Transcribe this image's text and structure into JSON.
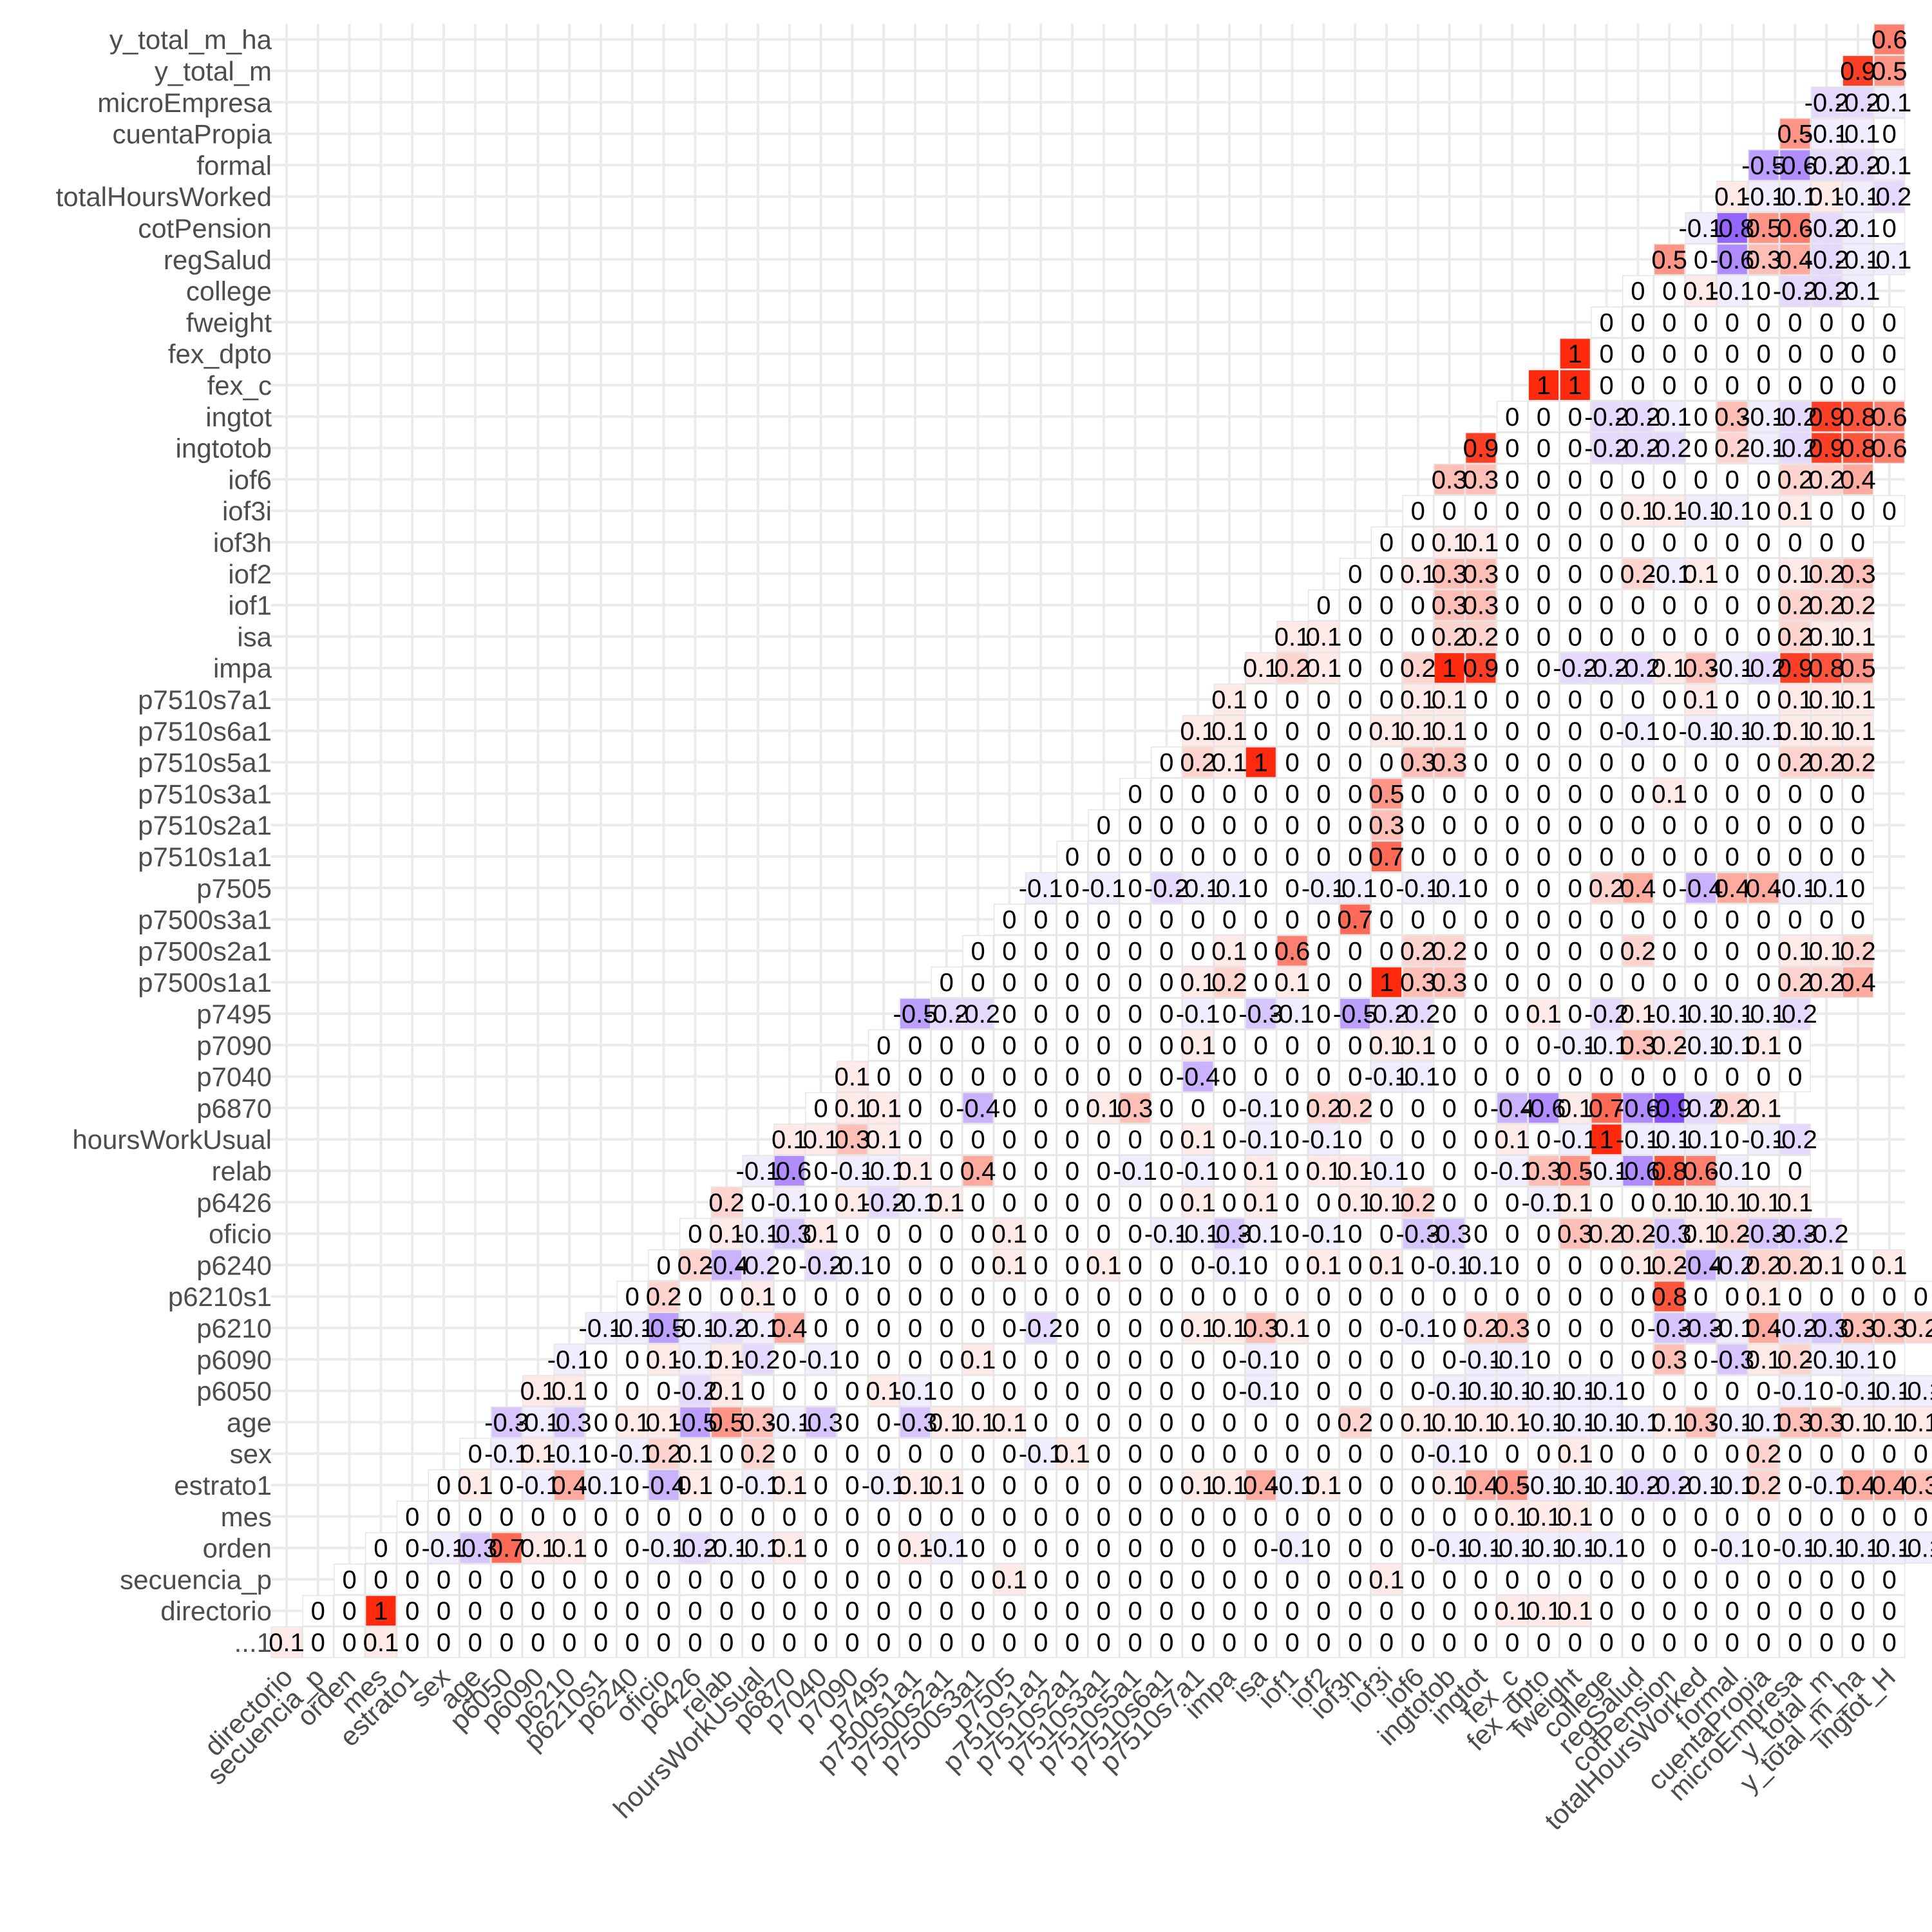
{
  "chart_data": {
    "type": "heatmap",
    "variables": [
      "...1",
      "directorio",
      "secuencia_p",
      "orden",
      "mes",
      "estrato1",
      "sex",
      "age",
      "p6050",
      "p6090",
      "p6210",
      "p6210s1",
      "p6240",
      "oficio",
      "p6426",
      "relab",
      "hoursWorkUsual",
      "p6870",
      "p7040",
      "p7090",
      "p7495",
      "p7500s1a1",
      "p7500s2a1",
      "p7500s3a1",
      "p7505",
      "p7510s1a1",
      "p7510s2a1",
      "p7510s3a1",
      "p7510s5a1",
      "p7510s6a1",
      "p7510s7a1",
      "impa",
      "isa",
      "iof1",
      "iof2",
      "iof3h",
      "iof3i",
      "iof6",
      "ingtotob",
      "ingtot",
      "fex_c",
      "fex_dpto",
      "fweight",
      "college",
      "regSalud",
      "cotPension",
      "totalHoursWorked",
      "formal",
      "cuentaPropia",
      "microEmpresa",
      "y_total_m",
      "y_total_m_ha",
      "ingtot_H"
    ],
    "y_labels": [
      "...1",
      "directorio",
      "secuencia_p",
      "orden",
      "mes",
      "estrato1",
      "sex",
      "age",
      "p6050",
      "p6090",
      "p6210",
      "p6210s1",
      "p6240",
      "oficio",
      "p6426",
      "relab",
      "hoursWorkUsual",
      "p6870",
      "p7040",
      "p7090",
      "p7495",
      "p7500s1a1",
      "p7500s2a1",
      "p7500s3a1",
      "p7505",
      "p7510s1a1",
      "p7510s2a1",
      "p7510s3a1",
      "p7510s5a1",
      "p7510s6a1",
      "p7510s7a1",
      "impa",
      "isa",
      "iof1",
      "iof2",
      "iof3h",
      "iof3i",
      "iof6",
      "ingtotob",
      "ingtot",
      "fex_c",
      "fex_dpto",
      "fweight",
      "college",
      "regSalud",
      "cotPension",
      "totalHoursWorked",
      "formal",
      "cuentaPropia",
      "microEmpresa",
      "y_total_m",
      "y_total_m_ha"
    ],
    "x_labels": [
      "directorio",
      "secuencia_p",
      "orden",
      "mes",
      "estrato1",
      "sex",
      "age",
      "p6050",
      "p6090",
      "p6210",
      "p6210s1",
      "p6240",
      "oficio",
      "p6426",
      "relab",
      "hoursWorkUsual",
      "p6870",
      "p7040",
      "p7090",
      "p7495",
      "p7500s1a1",
      "p7500s2a1",
      "p7500s3a1",
      "p7505",
      "p7510s1a1",
      "p7510s2a1",
      "p7510s3a1",
      "p7510s5a1",
      "p7510s6a1",
      "p7510s7a1",
      "impa",
      "isa",
      "iof1",
      "iof2",
      "iof3h",
      "iof3i",
      "iof6",
      "ingtotob",
      "ingtot",
      "fex_c",
      "fex_dpto",
      "fweight",
      "college",
      "regSalud",
      "cotPension",
      "totalHoursWorked",
      "formal",
      "cuentaPropia",
      "microEmpresa",
      "y_total_m",
      "y_total_m_ha",
      "ingtot_H"
    ],
    "value_range": [
      -1,
      1
    ],
    "color_scale": {
      "low": "#7b3fff",
      "mid": "#ffffff",
      "high": "#ff2a0d"
    },
    "grid": true,
    "legend": "none",
    "triangle": "lower",
    "values": [
      [
        0.1,
        0,
        0,
        0.1,
        0,
        0,
        0,
        0,
        0,
        0,
        0,
        0,
        0,
        0,
        0,
        0,
        0,
        0,
        0,
        0,
        0,
        0,
        0,
        0,
        0,
        0,
        0,
        0,
        0,
        0,
        0,
        0,
        0,
        0,
        0,
        0,
        0,
        0,
        0,
        0,
        0,
        0,
        0,
        0,
        0,
        0,
        0,
        0,
        0,
        0,
        0,
        0
      ],
      [
        0,
        0,
        1,
        0,
        0,
        0,
        0,
        0,
        0,
        0,
        0,
        0,
        0,
        0,
        0,
        0,
        0,
        0,
        0,
        0,
        0,
        0,
        0,
        0,
        0,
        0,
        0,
        0,
        0,
        0,
        0,
        0,
        0,
        0,
        0,
        0,
        0,
        0,
        0.1,
        0.1,
        0.1,
        0,
        0,
        0,
        0,
        0,
        0,
        0,
        0,
        0,
        0
      ],
      [
        0,
        0,
        0,
        0,
        0,
        0,
        0,
        0,
        0,
        0,
        0,
        0,
        0,
        0,
        0,
        0,
        0,
        0,
        0,
        0,
        0,
        0.1,
        0,
        0,
        0,
        0,
        0,
        0,
        0,
        0,
        0,
        0,
        0,
        0.1,
        0,
        0,
        0,
        0,
        0,
        0,
        0,
        0,
        0,
        0,
        0,
        0,
        0,
        0,
        0,
        0
      ],
      [
        0,
        0,
        -0.1,
        -0.3,
        0.7,
        0.1,
        0.1,
        0,
        0,
        -0.1,
        -0.2,
        -0.1,
        -0.1,
        0.1,
        0,
        0,
        0,
        0.1,
        -0.1,
        0,
        0,
        0,
        0,
        0,
        0,
        0,
        0,
        0,
        0,
        -0.1,
        0,
        0,
        0,
        0,
        -0.1,
        -0.1,
        -0.1,
        -0.1,
        -0.1,
        -0.1,
        0,
        0,
        0,
        -0.1,
        0,
        -0.1,
        -0.1,
        -0.1,
        -0.1,
        -0.1,
        -0.1
      ],
      [
        0,
        0,
        0,
        0,
        0,
        0,
        0,
        0,
        0,
        0,
        0,
        0,
        0,
        0,
        0,
        0,
        0,
        0,
        0,
        0,
        0,
        0,
        0,
        0,
        0,
        0,
        0,
        0,
        0,
        0,
        0,
        0,
        0,
        0,
        0,
        0.1,
        0.1,
        0.1,
        0,
        0,
        0,
        0,
        0,
        0,
        0,
        0,
        0,
        0,
        0,
        0
      ],
      [
        0,
        0.1,
        0,
        -0.1,
        0.4,
        -0.1,
        0,
        -0.4,
        0.1,
        0,
        -0.1,
        0.1,
        0,
        0,
        -0.1,
        0.1,
        0.1,
        0,
        0,
        0,
        0,
        0,
        0,
        0,
        0.1,
        0.1,
        0.4,
        -0.1,
        0.1,
        0,
        0,
        0,
        0.1,
        0.4,
        0.5,
        -0.1,
        -0.1,
        -0.1,
        -0.2,
        -0.2,
        -0.1,
        -0.1,
        0.2,
        0,
        -0.1,
        0.4,
        0.4,
        0.3
      ],
      [
        0,
        -0.1,
        0.1,
        -0.1,
        0,
        -0.1,
        0.2,
        0.1,
        0,
        0.2,
        0,
        0,
        0,
        0,
        0,
        0,
        0,
        0,
        -0.1,
        0.1,
        0,
        0,
        0,
        0,
        0,
        0,
        0,
        0,
        0,
        0,
        0,
        -0.1,
        0,
        0,
        0,
        0.1,
        0,
        0,
        0,
        0,
        0,
        0.2,
        0,
        0,
        0,
        0,
        0,
        0
      ],
      [
        -0.3,
        -0.1,
        -0.3,
        0,
        0.1,
        0.1,
        -0.5,
        0.5,
        0.3,
        -0.1,
        -0.3,
        0,
        0,
        -0.3,
        0.1,
        0.1,
        0.1,
        0,
        0,
        0,
        0,
        0,
        0,
        0,
        0,
        0,
        0,
        0.2,
        0,
        0.1,
        0.1,
        0.1,
        0.1,
        -0.1,
        -0.1,
        -0.1,
        -0.1,
        0.1,
        0.3,
        -0.1,
        -0.1,
        0.3,
        0.3,
        0.1,
        0.1,
        0.1
      ],
      [
        0.1,
        0.1,
        0,
        0,
        0,
        -0.2,
        0.1,
        0,
        0,
        0,
        0,
        0.1,
        -0.1,
        0,
        0,
        0,
        0,
        0,
        0,
        0,
        0,
        0,
        0,
        -0.1,
        0,
        0,
        0,
        0,
        0,
        -0.1,
        -0.1,
        -0.1,
        -0.1,
        -0.1,
        -0.1,
        0,
        0,
        0,
        0,
        0,
        -0.1,
        0,
        -0.1,
        -0.1,
        -0.1,
        -0.1
      ],
      [
        -0.1,
        0,
        0,
        0.1,
        -0.1,
        0.1,
        -0.2,
        0,
        -0.1,
        0,
        0,
        0,
        0,
        0.1,
        0,
        0,
        0,
        0,
        0,
        0,
        0,
        0,
        -0.1,
        0,
        0,
        0,
        0,
        0,
        0,
        -0.1,
        -0.1,
        0,
        0,
        0,
        0,
        0.3,
        0,
        -0.3,
        0.1,
        0.2,
        -0.1,
        -0.1,
        0
      ],
      [
        -0.1,
        -0.1,
        -0.5,
        -0.1,
        -0.2,
        -0.1,
        0.4,
        0,
        0,
        0,
        0,
        0,
        0,
        0,
        -0.2,
        0,
        0,
        0,
        0,
        0.1,
        0.1,
        0.3,
        0.1,
        0,
        0,
        0,
        -0.1,
        0,
        0.2,
        0.3,
        0,
        0,
        0,
        0,
        -0.3,
        -0.3,
        -0.1,
        0.4,
        -0.2,
        -0.3,
        0.3,
        0.3,
        0.2
      ],
      [
        0,
        0.2,
        0,
        0,
        0.1,
        0,
        0,
        0,
        0,
        0,
        0,
        0,
        0,
        0,
        0,
        0,
        0,
        0,
        0,
        0,
        0,
        0,
        0,
        0,
        0,
        0,
        0,
        0,
        0,
        0,
        0,
        0,
        0,
        0.8,
        0,
        0,
        0.1,
        0,
        0,
        0,
        0,
        0,
        0
      ],
      [
        0,
        0.2,
        -0.4,
        -0.2,
        0,
        -0.2,
        -0.1,
        0,
        0,
        0,
        0,
        0.1,
        0,
        0,
        0.1,
        0,
        0,
        0,
        -0.1,
        0,
        0,
        0.1,
        0,
        0.1,
        0,
        -0.1,
        -0.1,
        0,
        0,
        0,
        0,
        0.1,
        0.2,
        -0.4,
        -0.2,
        0.2,
        0.2,
        0.1,
        0,
        0.1
      ],
      [
        0,
        0.1,
        -0.1,
        -0.3,
        0.1,
        0,
        0,
        0,
        0,
        0,
        0.1,
        0,
        0,
        0,
        0,
        -0.1,
        -0.1,
        -0.3,
        -0.1,
        0,
        -0.1,
        0,
        0,
        -0.3,
        -0.3,
        0,
        0,
        0,
        0.3,
        0.2,
        0.2,
        -0.3,
        0.1,
        0.2,
        -0.3,
        -0.3,
        -0.2
      ],
      [
        0.2,
        0,
        -0.1,
        0,
        0.1,
        -0.2,
        -0.1,
        0.1,
        0,
        0,
        0,
        0,
        0,
        0,
        0,
        0.1,
        0,
        0.1,
        0,
        0,
        0.1,
        0.1,
        0.2,
        0,
        0,
        0,
        -0.1,
        0.1,
        0,
        0,
        0.1,
        0.1,
        0.1,
        0.1,
        0.1
      ],
      [
        -0.1,
        -0.6,
        0,
        -0.1,
        -0.1,
        0.1,
        0,
        0.4,
        0,
        0,
        0,
        0,
        -0.1,
        0,
        -0.1,
        0,
        0.1,
        0,
        0.1,
        0.1,
        -0.1,
        0,
        0,
        0,
        -0.1,
        0.3,
        0.5,
        -0.1,
        -0.6,
        0.8,
        0.6,
        -0.1,
        0,
        0
      ],
      [
        0.1,
        0.1,
        0.3,
        0.1,
        0,
        0,
        0,
        0,
        0,
        0,
        0,
        0,
        0,
        0.1,
        0,
        -0.1,
        0,
        -0.1,
        0,
        0,
        0,
        0,
        0,
        0.1,
        0,
        -0.1,
        1,
        -0.1,
        -0.1,
        -0.1,
        0,
        -0.1,
        -0.2
      ],
      [
        0,
        0.1,
        0.1,
        0,
        0,
        -0.4,
        0,
        0,
        0,
        0.1,
        0.3,
        0,
        0,
        0,
        -0.1,
        0,
        0.2,
        0.2,
        0,
        0,
        0,
        0,
        -0.4,
        -0.6,
        0.1,
        0.7,
        -0.6,
        -0.9,
        -0.2,
        0.2,
        0.1
      ],
      [
        0.1,
        0,
        0,
        0,
        0,
        0,
        0,
        0,
        0,
        0,
        0,
        -0.4,
        0,
        0,
        0,
        0,
        0,
        -0.1,
        -0.1,
        0,
        0,
        0,
        0,
        0,
        0,
        0,
        0,
        0,
        0,
        0,
        0
      ],
      [
        0,
        0,
        0,
        0,
        0,
        0,
        0,
        0,
        0,
        0,
        0.1,
        0,
        0,
        0,
        0,
        0,
        0.1,
        0.1,
        0,
        0,
        0,
        0,
        -0.1,
        -0.1,
        0.3,
        0.2,
        -0.1,
        -0.1,
        0.1,
        0
      ],
      [
        -0.5,
        -0.2,
        -0.2,
        0,
        0,
        0,
        0,
        0,
        0,
        -0.1,
        0,
        -0.3,
        -0.1,
        0,
        -0.5,
        -0.2,
        -0.2,
        0,
        0,
        0,
        0.1,
        0,
        -0.2,
        0.1,
        -0.1,
        -0.1,
        -0.1,
        -0.1,
        -0.2
      ],
      [
        0,
        0,
        0,
        0,
        0,
        0,
        0,
        0,
        0.1,
        0.2,
        0,
        0.1,
        0,
        0,
        1,
        0.3,
        0.3,
        0,
        0,
        0,
        0,
        0,
        0,
        0,
        0,
        0,
        0,
        0.2,
        0.2,
        0.4
      ],
      [
        0,
        0,
        0,
        0,
        0,
        0,
        0,
        0,
        0.1,
        0,
        0.6,
        0,
        0,
        0,
        0.2,
        0.2,
        0,
        0,
        0,
        0,
        0,
        0.2,
        0,
        0,
        0,
        0,
        0.1,
        0.1,
        0.2
      ],
      [
        0,
        0,
        0,
        0,
        0,
        0,
        0,
        0,
        0,
        0,
        0,
        0.7,
        0,
        0,
        0,
        0,
        0,
        0,
        0,
        0,
        0,
        0,
        0,
        0,
        0,
        0,
        0,
        0
      ],
      [
        -0.1,
        0,
        -0.1,
        0,
        -0.2,
        -0.1,
        -0.1,
        0,
        0,
        -0.1,
        -0.1,
        0,
        -0.1,
        -0.1,
        0,
        0,
        0,
        0,
        0.2,
        0.4,
        0,
        -0.4,
        0.4,
        0.4,
        -0.1,
        -0.1,
        0
      ],
      [
        0,
        0,
        0,
        0,
        0,
        0,
        0,
        0,
        0,
        0,
        0.7,
        0,
        0,
        0,
        0,
        0,
        0,
        0,
        0,
        0,
        0,
        0,
        0,
        0,
        0,
        0
      ],
      [
        0,
        0,
        0,
        0,
        0,
        0,
        0,
        0,
        0,
        0.3,
        0,
        0,
        0,
        0,
        0,
        0,
        0,
        0,
        0,
        0,
        0,
        0,
        0,
        0,
        0
      ],
      [
        0,
        0,
        0,
        0,
        0,
        0,
        0,
        0,
        0.5,
        0,
        0,
        0,
        0,
        0,
        0,
        0,
        0,
        0.1,
        0,
        0,
        0,
        0,
        0,
        0
      ],
      [
        0,
        0.2,
        0.1,
        1,
        0,
        0,
        0,
        0,
        0.3,
        0.3,
        0,
        0,
        0,
        0,
        0,
        0,
        0,
        0,
        0,
        0,
        0.2,
        0.2,
        0.2
      ],
      [
        0.1,
        0.1,
        0,
        0,
        0,
        0,
        0.1,
        0.1,
        0.1,
        0,
        0,
        0,
        0,
        0,
        -0.1,
        0,
        -0.1,
        -0.1,
        -0.1,
        0.1,
        0.1,
        0.1
      ],
      [
        0.1,
        0,
        0,
        0,
        0,
        0,
        0.1,
        0.1,
        0,
        0,
        0,
        0,
        0,
        0,
        0,
        0.1,
        0,
        0,
        0.1,
        0.1,
        0.1
      ],
      [
        0.1,
        0.2,
        0.1,
        0,
        0,
        0.2,
        1,
        0.9,
        0,
        0,
        -0.2,
        -0.2,
        -0.2,
        0.1,
        0.3,
        -0.1,
        -0.2,
        0.9,
        0.8,
        0.5
      ],
      [
        0.1,
        0.1,
        0,
        0,
        0,
        0.2,
        0.2,
        0,
        0,
        0,
        0,
        0,
        0,
        0,
        0,
        0,
        0.2,
        0.1,
        0.1
      ],
      [
        0,
        0,
        0,
        0,
        0.3,
        0.3,
        0,
        0,
        0,
        0,
        0,
        0,
        0,
        0,
        0,
        0.2,
        0.2,
        0.2
      ],
      [
        0,
        0,
        0.1,
        0.3,
        0.3,
        0,
        0,
        0,
        0,
        0.2,
        -0.1,
        0.1,
        0,
        0,
        0.1,
        0.2,
        0.3
      ],
      [
        0,
        0,
        0.1,
        0.1,
        0,
        0,
        0,
        0,
        0,
        0,
        0,
        0,
        0,
        0,
        0,
        0
      ],
      [
        0,
        0,
        0,
        0,
        0,
        0,
        0,
        0.1,
        0.1,
        -0.1,
        -0.1,
        0,
        0.1,
        0,
        0,
        0
      ],
      [
        0.3,
        0.3,
        0,
        0,
        0,
        0,
        0,
        0,
        0,
        0,
        0,
        0.2,
        0.2,
        0.4
      ],
      [
        0.9,
        0,
        0,
        0,
        -0.2,
        -0.2,
        -0.2,
        0,
        0.2,
        -0.1,
        -0.2,
        0.9,
        0.8,
        0.6
      ],
      [
        0,
        0,
        0,
        -0.2,
        -0.2,
        -0.1,
        0,
        0.3,
        -0.1,
        -0.2,
        0.9,
        0.8,
        0.6
      ],
      [
        1,
        1,
        0,
        0,
        0,
        0,
        0,
        0,
        0,
        0,
        0,
        0
      ],
      [
        1,
        0,
        0,
        0,
        0,
        0,
        0,
        0,
        0,
        0,
        0
      ],
      [
        0,
        0,
        0,
        0,
        0,
        0,
        0,
        0,
        0,
        0
      ],
      [
        0,
        0,
        0.1,
        -0.1,
        0,
        -0.2,
        -0.2,
        -0.1
      ],
      [
        0.5,
        0,
        -0.6,
        0.3,
        0.4,
        -0.2,
        -0.1,
        -0.1
      ],
      [
        -0.1,
        -0.8,
        0.5,
        0.6,
        -0.2,
        -0.1,
        0
      ],
      [
        0.1,
        -0.1,
        -0.1,
        0.1,
        -0.1,
        -0.2
      ],
      [
        -0.5,
        -0.6,
        -0.2,
        -0.2,
        -0.1
      ],
      [
        0.5,
        -0.1,
        -0.1,
        0
      ],
      [
        -0.2,
        -0.2,
        -0.1
      ],
      [
        0.9,
        0.5
      ],
      [
        0.6
      ]
    ]
  }
}
